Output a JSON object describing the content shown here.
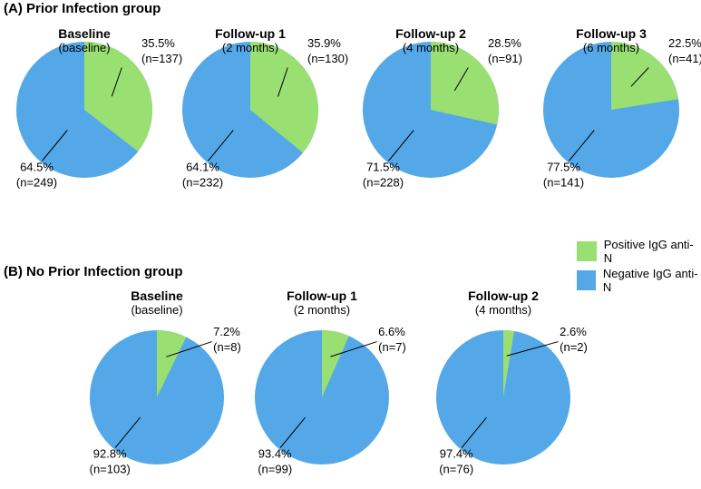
{
  "colors": {
    "positive": "#99DF72",
    "negative": "#54A8E8"
  },
  "legend": [
    {
      "key": "positive",
      "label": "Positive IgG anti-N"
    },
    {
      "key": "negative",
      "label": "Negative IgG anti-N"
    }
  ],
  "chart_data": [
    {
      "type": "pie",
      "group": "A",
      "title": "(A) Prior Infection group",
      "subtitle": "Baseline",
      "period": "(baseline)",
      "slices": [
        {
          "name": "Positive IgG anti-N",
          "value": 35.5,
          "pct_label": "35.5%",
          "n_label": "(n=137)"
        },
        {
          "name": "Negative IgG anti-N",
          "value": 64.5,
          "pct_label": "64.5%",
          "n_label": "(n=249)"
        }
      ]
    },
    {
      "type": "pie",
      "group": "A",
      "title": "(A) Prior Infection group",
      "subtitle": "Follow-up 1",
      "period": "(2 months)",
      "slices": [
        {
          "name": "Positive IgG anti-N",
          "value": 35.9,
          "pct_label": "35.9%",
          "n_label": "(n=130)"
        },
        {
          "name": "Negative IgG anti-N",
          "value": 64.1,
          "pct_label": "64.1%",
          "n_label": "(n=232)"
        }
      ]
    },
    {
      "type": "pie",
      "group": "A",
      "title": "(A) Prior Infection group",
      "subtitle": "Follow-up 2",
      "period": "(4 months)",
      "slices": [
        {
          "name": "Positive IgG anti-N",
          "value": 28.5,
          "pct_label": "28.5%",
          "n_label": "(n=91)"
        },
        {
          "name": "Negative IgG anti-N",
          "value": 71.5,
          "pct_label": "71.5%",
          "n_label": "(n=228)"
        }
      ]
    },
    {
      "type": "pie",
      "group": "A",
      "title": "(A) Prior Infection group",
      "subtitle": "Follow-up 3",
      "period": "(6 months)",
      "slices": [
        {
          "name": "Positive IgG anti-N",
          "value": 22.5,
          "pct_label": "22.5%",
          "n_label": "(n=41)"
        },
        {
          "name": "Negative IgG anti-N",
          "value": 77.5,
          "pct_label": "77.5%",
          "n_label": "(n=141)"
        }
      ]
    },
    {
      "type": "pie",
      "group": "B",
      "title": "(B) No Prior Infection group",
      "subtitle": "Baseline",
      "period": "(baseline)",
      "slices": [
        {
          "name": "Positive IgG anti-N",
          "value": 7.2,
          "pct_label": "7.2%",
          "n_label": "(n=8)"
        },
        {
          "name": "Negative IgG anti-N",
          "value": 92.8,
          "pct_label": "92.8%",
          "n_label": "(n=103)"
        }
      ]
    },
    {
      "type": "pie",
      "group": "B",
      "title": "(B) No Prior Infection group",
      "subtitle": "Follow-up 1",
      "period": "(2 months)",
      "slices": [
        {
          "name": "Positive IgG anti-N",
          "value": 6.6,
          "pct_label": "6.6%",
          "n_label": "(n=7)"
        },
        {
          "name": "Negative IgG anti-N",
          "value": 93.4,
          "pct_label": "93.4%",
          "n_label": "(n=99)"
        }
      ]
    },
    {
      "type": "pie",
      "group": "B",
      "title": "(B) No Prior Infection group",
      "subtitle": "Follow-up 2",
      "period": "(4 months)",
      "slices": [
        {
          "name": "Positive IgG anti-N",
          "value": 2.6,
          "pct_label": "2.6%",
          "n_label": "(n=2)"
        },
        {
          "name": "Negative IgG anti-N",
          "value": 97.4,
          "pct_label": "97.4%",
          "n_label": "(n=76)"
        }
      ]
    }
  ]
}
